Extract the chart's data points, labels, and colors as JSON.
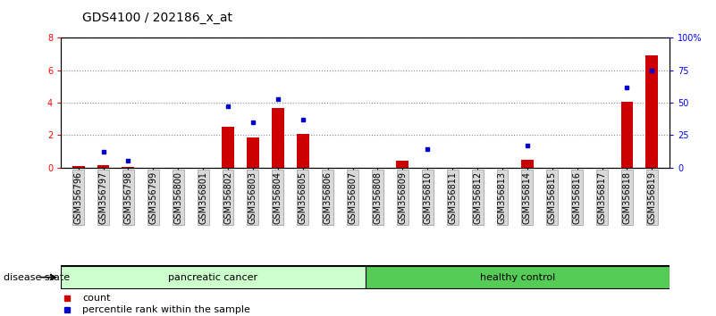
{
  "title": "GDS4100 / 202186_x_at",
  "samples": [
    "GSM356796",
    "GSM356797",
    "GSM356798",
    "GSM356799",
    "GSM356800",
    "GSM356801",
    "GSM356802",
    "GSM356803",
    "GSM356804",
    "GSM356805",
    "GSM356806",
    "GSM356807",
    "GSM356808",
    "GSM356809",
    "GSM356810",
    "GSM356811",
    "GSM356812",
    "GSM356813",
    "GSM356814",
    "GSM356815",
    "GSM356816",
    "GSM356817",
    "GSM356818",
    "GSM356819"
  ],
  "count_values": [
    0.1,
    0.12,
    0.04,
    0,
    0,
    0,
    2.5,
    1.85,
    3.65,
    2.05,
    0,
    0,
    0,
    0.4,
    0,
    0,
    0,
    0,
    0.5,
    0,
    0,
    0,
    4.05,
    6.9
  ],
  "percentile_values": [
    0,
    12,
    5,
    0,
    0,
    0,
    47,
    35,
    53,
    37,
    0,
    0,
    0,
    0,
    14,
    0,
    0,
    0,
    17,
    0,
    0,
    0,
    62,
    75
  ],
  "ylim_left": [
    0,
    8
  ],
  "ylim_right": [
    0,
    100
  ],
  "yticks_left": [
    0,
    2,
    4,
    6,
    8
  ],
  "yticks_right": [
    0,
    25,
    50,
    75,
    100
  ],
  "ytick_labels_right": [
    "0",
    "25",
    "50",
    "75",
    "100%"
  ],
  "group1_label": "pancreatic cancer",
  "group2_label": "healthy control",
  "group1_count": 12,
  "group2_count": 12,
  "group1_color": "#ccffcc",
  "group2_color": "#55cc55",
  "bar_color": "#cc0000",
  "dot_color": "#0000cc",
  "disease_state_label": "disease state",
  "legend_count": "count",
  "legend_percentile": "percentile rank within the sample",
  "bg_color": "#d8d8d8",
  "plot_bg_color": "#ffffff",
  "grid_color": "#888888",
  "title_fontsize": 10,
  "tick_fontsize": 7,
  "label_fontsize": 8
}
